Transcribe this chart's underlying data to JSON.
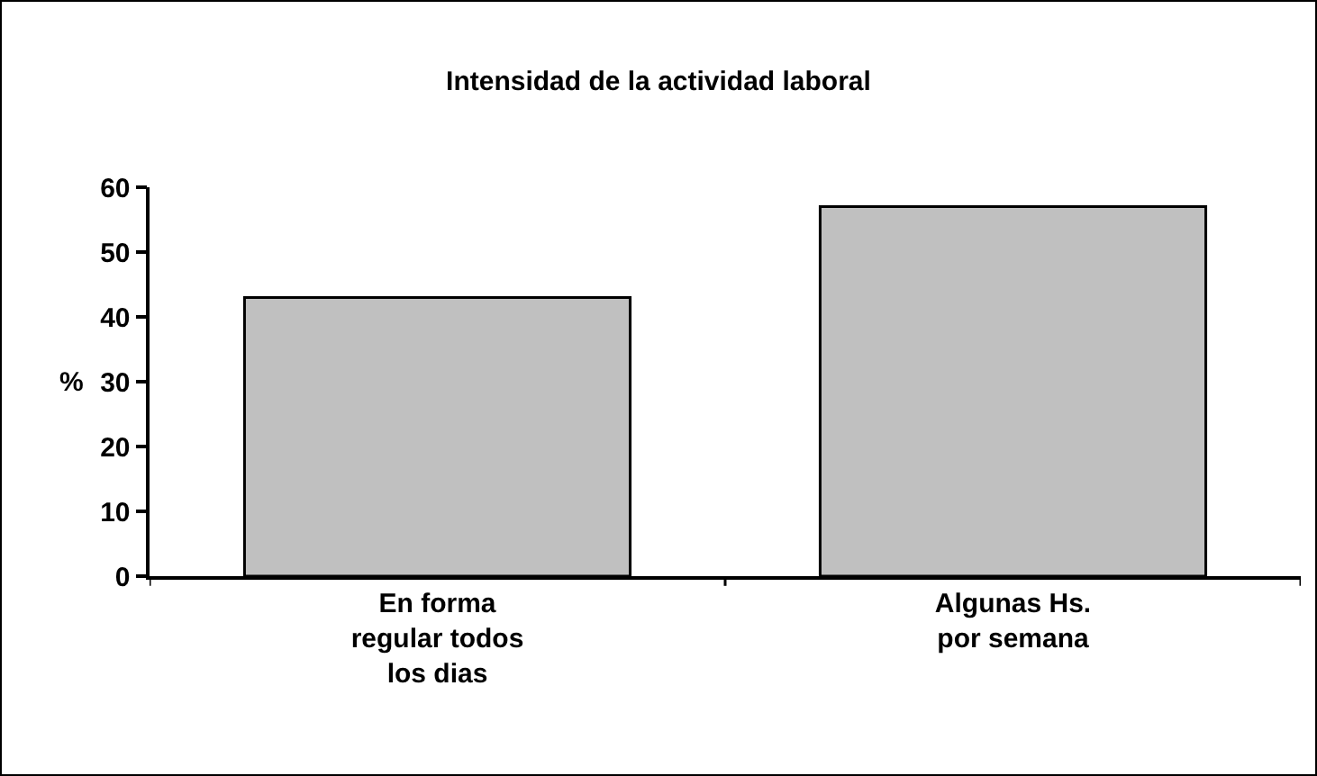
{
  "chart_data": {
    "type": "bar",
    "title": "Intensidad de la actividad laboral",
    "ylabel": "%",
    "categories": [
      "En forma regular todos los dias",
      "Algunas Hs. por semana"
    ],
    "values": [
      43,
      57
    ],
    "color": "#c0c0c0",
    "ylim": [
      0,
      60
    ],
    "yticks": [
      0,
      10,
      20,
      30,
      40,
      50,
      60
    ],
    "grid": false
  }
}
